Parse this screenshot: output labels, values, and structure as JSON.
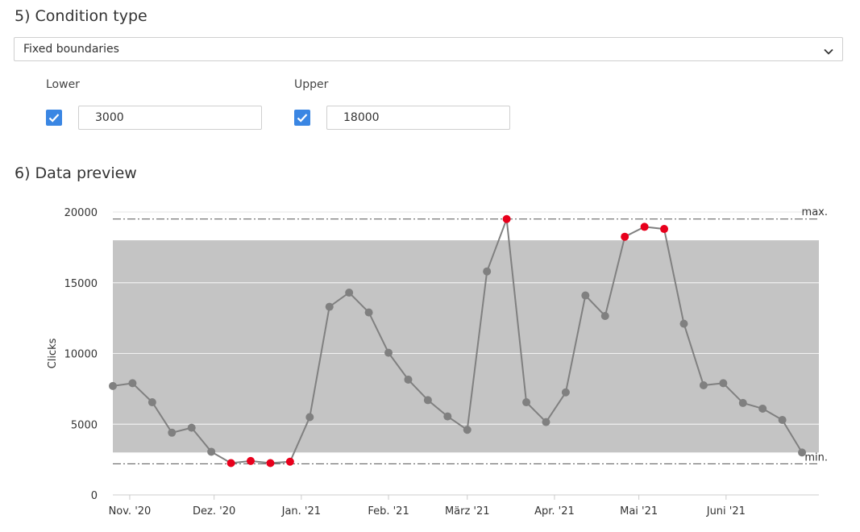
{
  "condition": {
    "title": "5) Condition type",
    "select_value": "Fixed boundaries",
    "lower_label": "Lower",
    "upper_label": "Upper",
    "lower_checked": true,
    "upper_checked": true,
    "lower_value": "3000",
    "upper_value": "18000"
  },
  "preview": {
    "title": "6) Data preview"
  },
  "colors": {
    "band": "#c4c4c4",
    "line": "#808080",
    "point": "#808080",
    "outlier": "#e8001c",
    "checkbox": "#3a86e3"
  },
  "chart_data": {
    "type": "line",
    "ylabel": "Clicks",
    "ylim": [
      0,
      20000
    ],
    "yticks": [
      0,
      5000,
      10000,
      15000,
      20000
    ],
    "xlim": [
      "2020-10-26",
      "2021-07-04"
    ],
    "xticks": [
      {
        "label": "Nov. '20",
        "date": "2020-11-01"
      },
      {
        "label": "Dez. '20",
        "date": "2020-12-01"
      },
      {
        "label": "Jan. '21",
        "date": "2021-01-01"
      },
      {
        "label": "Feb. '21",
        "date": "2021-02-01"
      },
      {
        "label": "März '21",
        "date": "2021-03-01"
      },
      {
        "label": "Apr. '21",
        "date": "2021-04-01"
      },
      {
        "label": "Mai '21",
        "date": "2021-05-01"
      },
      {
        "label": "Juni '21",
        "date": "2021-06-01"
      }
    ],
    "band": [
      3000,
      18000
    ],
    "max_line": {
      "value": 19500,
      "label": "max."
    },
    "min_line": {
      "value": 2200,
      "label": "min."
    },
    "grid": true,
    "series": [
      {
        "x": [
          "2020-10-26",
          "2020-11-02",
          "2020-11-09",
          "2020-11-16",
          "2020-11-23",
          "2020-11-30",
          "2020-12-07",
          "2020-12-14",
          "2020-12-21",
          "2020-12-28",
          "2021-01-04",
          "2021-01-11",
          "2021-01-18",
          "2021-01-25",
          "2021-02-01",
          "2021-02-08",
          "2021-02-15",
          "2021-02-22",
          "2021-03-01",
          "2021-03-08",
          "2021-03-15",
          "2021-03-22",
          "2021-03-29",
          "2021-04-05",
          "2021-04-12",
          "2021-04-19",
          "2021-04-26",
          "2021-05-03",
          "2021-05-10",
          "2021-05-17",
          "2021-05-24",
          "2021-05-31",
          "2021-06-07",
          "2021-06-14",
          "2021-06-21",
          "2021-06-28"
        ],
        "values": [
          7700,
          7900,
          6550,
          4400,
          4750,
          3050,
          2250,
          2400,
          2250,
          2350,
          5500,
          13300,
          14300,
          12900,
          10050,
          8150,
          6700,
          5550,
          4600,
          15800,
          19500,
          6550,
          5150,
          7250,
          14100,
          12650,
          18250,
          18950,
          18800,
          12100,
          7750,
          7900,
          6500,
          6100,
          5300,
          3000
        ]
      }
    ]
  }
}
